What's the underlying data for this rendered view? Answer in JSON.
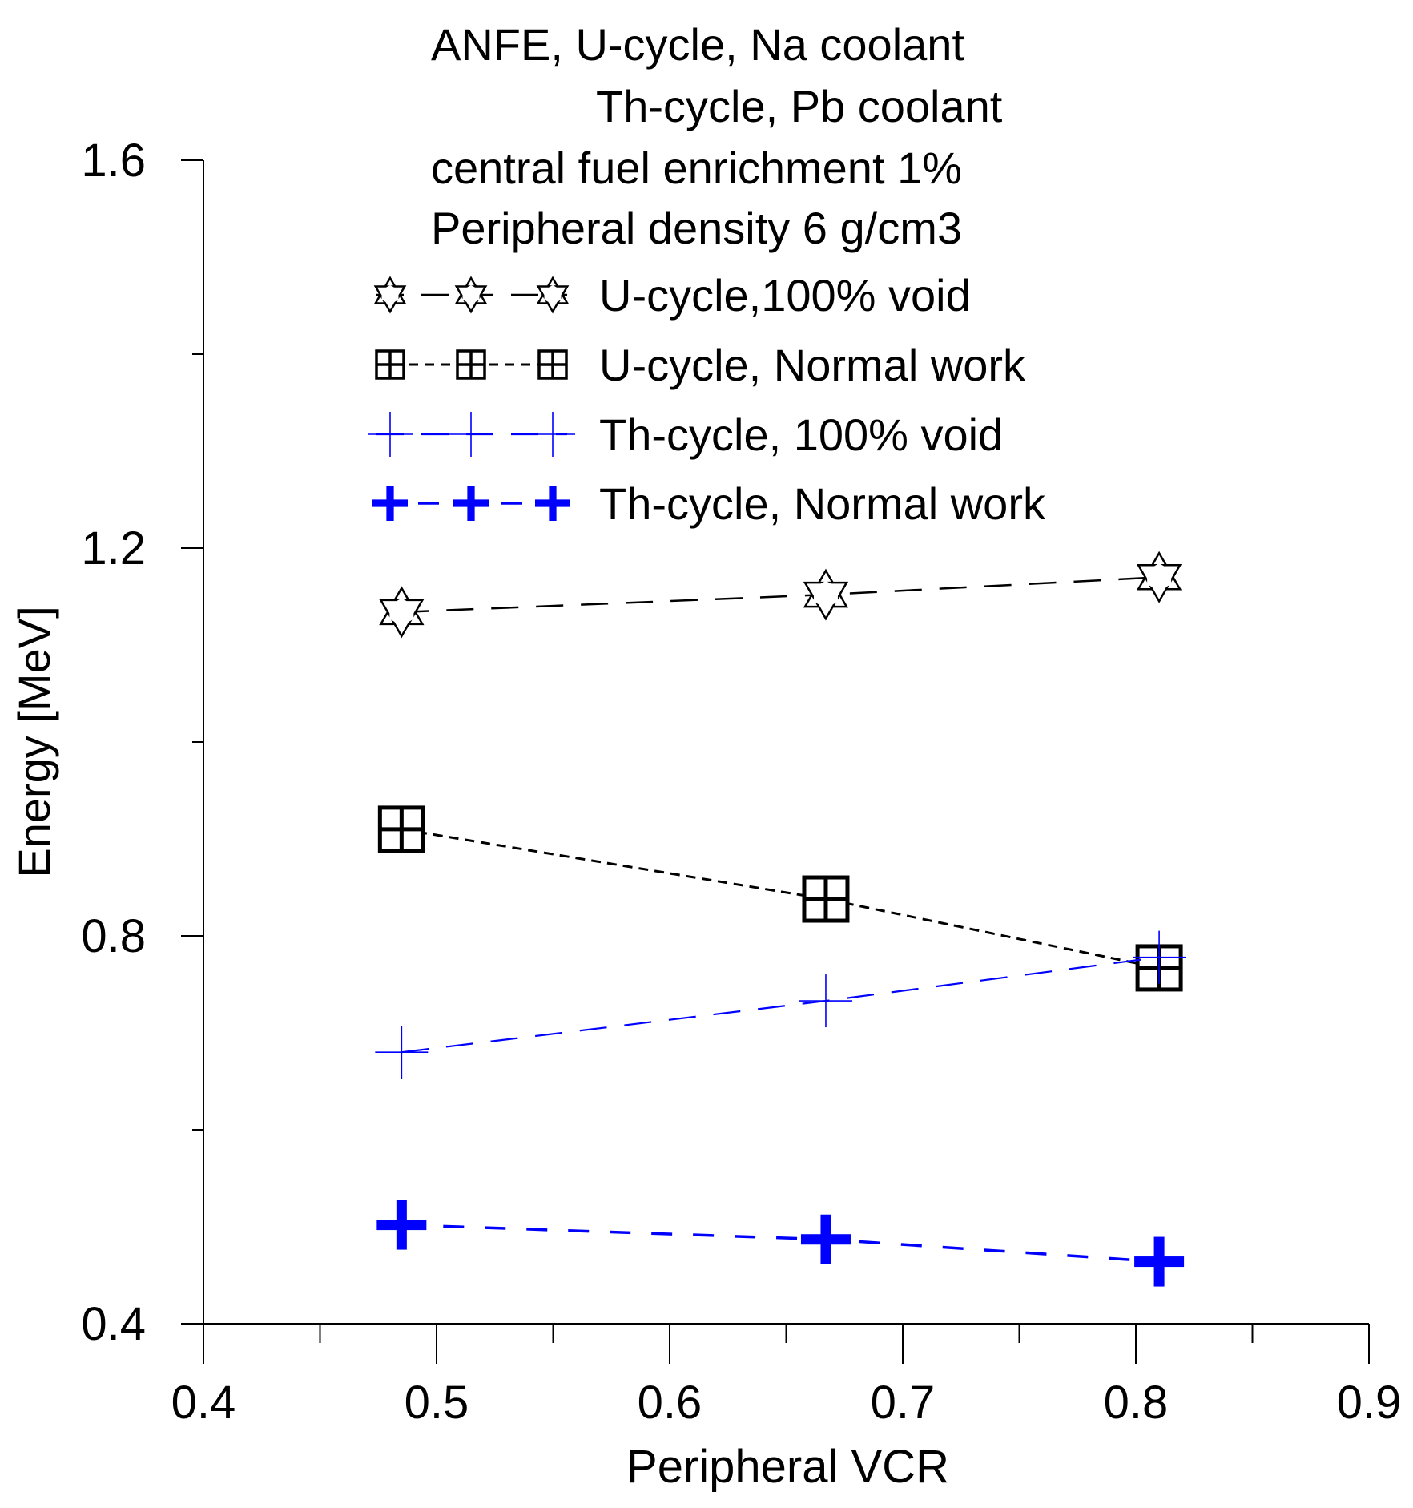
{
  "chart_data": {
    "type": "line",
    "title_lines": [
      "ANFE, U-cycle, Na coolant",
      "Th-cycle, Pb coolant",
      "central fuel enrichment 1%",
      "Peripheral density 6 g/cm3"
    ],
    "xlabel": "Peripheral VCR",
    "ylabel": "Energy [MeV]",
    "xlim": [
      0.4,
      0.9
    ],
    "ylim": [
      0.4,
      1.6
    ],
    "x_ticks": [
      0.4,
      0.5,
      0.6,
      0.7,
      0.8,
      0.9
    ],
    "x_tick_labels": [
      "0.4",
      "0.5",
      "0.6",
      "0.7",
      "0.8",
      "0.9"
    ],
    "y_ticks": [
      0.4,
      0.8,
      1.2,
      1.6
    ],
    "y_tick_labels": [
      "0.4",
      "0.8",
      "1.2",
      "1.6"
    ],
    "legend_position": "top-center",
    "series": [
      {
        "name": "U-cycle,100% void",
        "marker": "star",
        "color": "#000000",
        "line_style": "long-dash",
        "x": [
          0.485,
          0.667,
          0.81
        ],
        "values": [
          1.134,
          1.152,
          1.17
        ]
      },
      {
        "name": "U-cycle, Normal work",
        "marker": "square-cross",
        "color": "#000000",
        "line_style": "short-dash",
        "x": [
          0.485,
          0.667,
          0.81
        ],
        "values": [
          0.91,
          0.838,
          0.767
        ]
      },
      {
        "name": "Th-cycle, 100% void",
        "marker": "thin-plus",
        "color": "#0000ff",
        "line_style": "long-dash",
        "x": [
          0.485,
          0.667,
          0.81
        ],
        "values": [
          0.68,
          0.733,
          0.778
        ]
      },
      {
        "name": "Th-cycle, Normal work",
        "marker": "bold-plus",
        "color": "#0000ff",
        "line_style": "medium-dash",
        "x": [
          0.485,
          0.667,
          0.81
        ],
        "values": [
          0.502,
          0.487,
          0.464
        ]
      }
    ]
  }
}
